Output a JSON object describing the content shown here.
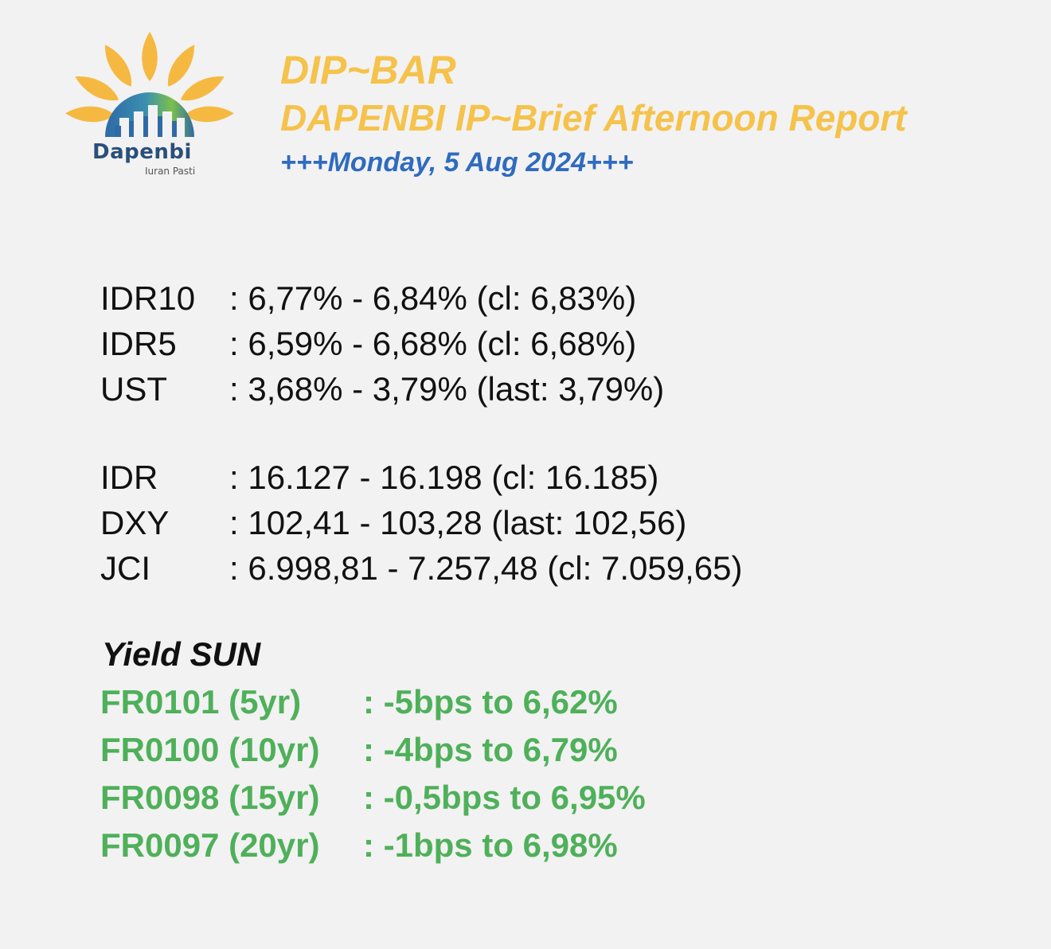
{
  "logo": {
    "name": "Dapenbi",
    "tagline": "Iuran Pasti",
    "colors": {
      "petals": "#f5b942",
      "arc": "#2f6aa6",
      "arc_accent": "#7cc04b",
      "text": "#2a4f7a"
    }
  },
  "header": {
    "title": "DIP~BAR",
    "subtitle": "DAPENBI IP~Brief Afternoon Report",
    "date": "+++Monday, 5 Aug 2024+++"
  },
  "market": {
    "rates": [
      {
        "label": "IDR10",
        "value": ": 6,77% - 6,84% (cl: 6,83%)"
      },
      {
        "label": "IDR5",
        "value": ": 6,59% - 6,68% (cl: 6,68%)"
      },
      {
        "label": "UST",
        "value": ": 3,68% - 3,79% (last: 3,79%)"
      }
    ],
    "fx": [
      {
        "label": "IDR",
        "value": ": 16.127 - 16.198 (cl: 16.185)"
      },
      {
        "label": "DXY",
        "value": ": 102,41 - 103,28 (last: 102,56)"
      },
      {
        "label": "JCI",
        "value": ": 6.998,81 - 7.257,48 (cl: 7.059,65)"
      }
    ]
  },
  "yield_sun": {
    "title": "Yield SUN",
    "color": "#4fb05a",
    "rows": [
      {
        "label": "FR0101 (5yr)",
        "value": ": -5bps to 6,62%"
      },
      {
        "label": "FR0100 (10yr)",
        "value": ": -4bps to 6,79%"
      },
      {
        "label": "FR0098 (15yr)",
        "value": ": -0,5bps to 6,95%"
      },
      {
        "label": "FR0097 (20yr)",
        "value": ": -1bps to 6,98%"
      }
    ]
  },
  "colors": {
    "background": "#f2f2f2",
    "title": "#f5c24b",
    "date": "#2f6bbf"
  }
}
